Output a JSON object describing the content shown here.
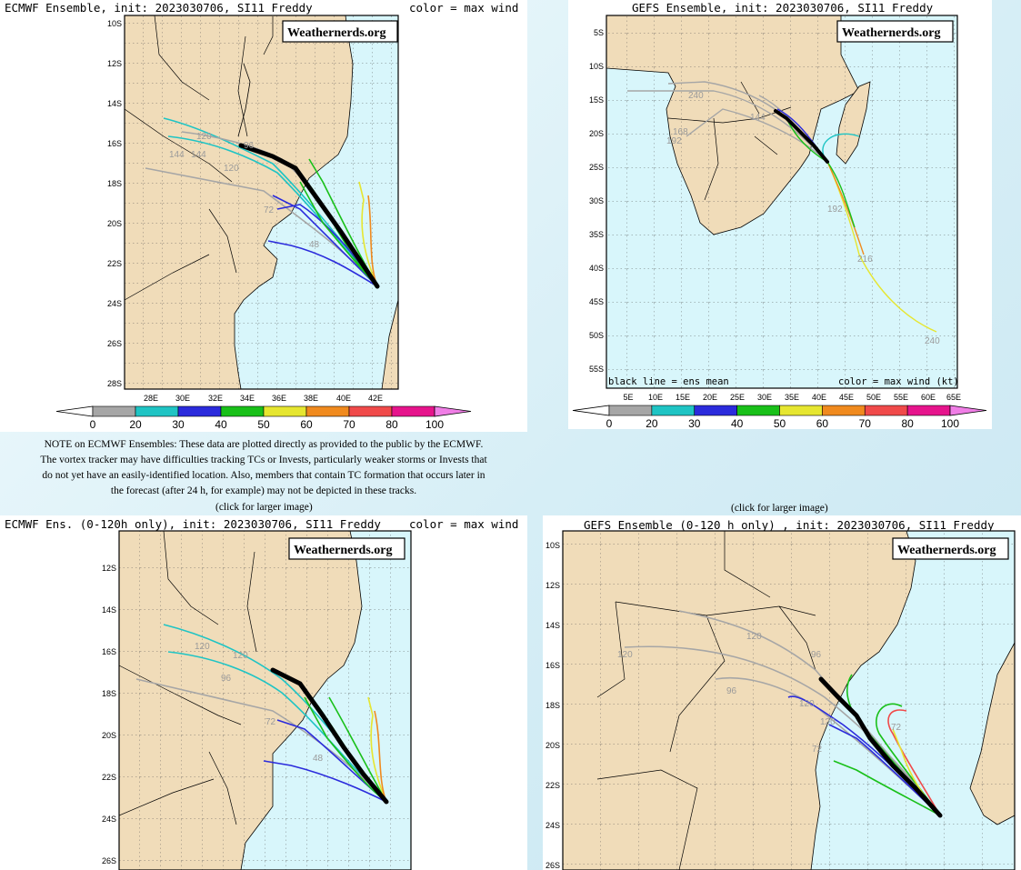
{
  "panels": {
    "p1": {
      "title": "ECMWF Ensemble, init: 2023030706, SI11 Freddy",
      "color_note": "color = max wind (kt)",
      "brand": "Weathernerds.org",
      "lat_labels": [
        "10S",
        "12S",
        "14S",
        "16S",
        "18S",
        "20S",
        "22S",
        "24S",
        "26S",
        "28S"
      ],
      "lon_labels": [
        "28E",
        "30E",
        "32E",
        "34E",
        "36E",
        "38E",
        "40E",
        "42E"
      ],
      "track_labels": [
        "144",
        "120",
        "144",
        "120",
        "96",
        "72",
        "48"
      ]
    },
    "p2": {
      "title": "GEFS Ensemble, init: 2023030706, SI11 Freddy",
      "brand": "Weathernerds.org",
      "lat_labels": [
        "5S",
        "10S",
        "15S",
        "20S",
        "25S",
        "30S",
        "35S",
        "40S",
        "45S",
        "50S",
        "55S"
      ],
      "lon_labels": [
        "5E",
        "10E",
        "15E",
        "20E",
        "25E",
        "30E",
        "35E",
        "40E",
        "45E",
        "50E",
        "55E",
        "60E",
        "65E"
      ],
      "footer_left": "black line = ens mean",
      "footer_right": "color = max wind (kt)",
      "track_labels": [
        "240",
        "168",
        "192",
        "144",
        "192",
        "216",
        "240"
      ]
    },
    "p3": {
      "title": "ECMWF Ens. (0-120h only), init: 2023030706, SI11 Freddy",
      "color_note": "color = max wind (kt)",
      "brand": "Weathernerds.org",
      "lat_labels": [
        "12S",
        "14S",
        "16S",
        "18S",
        "20S",
        "22S",
        "24S",
        "26S"
      ],
      "track_labels": [
        "120",
        "120",
        "96",
        "72",
        "48"
      ]
    },
    "p4": {
      "title": "GEFS Ensemble (0-120 h only) , init: 2023030706, SI11 Freddy",
      "brand": "Weathernerds.org",
      "lat_labels": [
        "10S",
        "12S",
        "14S",
        "16S",
        "18S",
        "20S",
        "22S",
        "24S",
        "26S"
      ],
      "track_labels": [
        "120",
        "120",
        "96",
        "96",
        "120",
        "120",
        "72",
        "72"
      ]
    }
  },
  "colorbar_labels": [
    "0",
    "20",
    "30",
    "40",
    "50",
    "60",
    "70",
    "80",
    "100"
  ],
  "colorbar_colors": [
    "#a6a6a6",
    "#1fc4c4",
    "#2b2bdc",
    "#19c019",
    "#e6e630",
    "#f08a1e",
    "#f04a4a",
    "#e6148c",
    "#f07ee6"
  ],
  "ecmwf_note": "NOTE on ECMWF Ensembles: These data are plotted directly as provided to the public by the ECMWF. The vortex tracker may have difficulties tracking TCs or Invests, particularly weaker storms or Invests that do not yet have an easily-identified location. Also, members that contain TC formation that occurs later in the forecast (after 24 h, for example) may not be depicted in these tracks.",
  "click_left": "(click for larger image)",
  "click_right": "(click for larger image)"
}
